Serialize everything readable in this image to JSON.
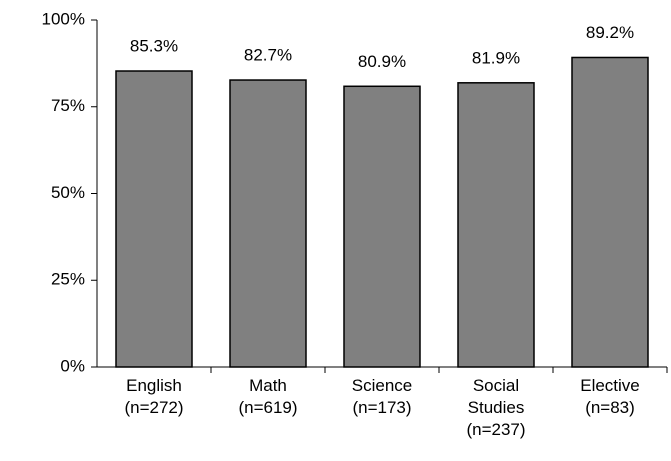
{
  "chart_data": {
    "type": "bar",
    "categories": [
      "English\n(n=272)",
      "Math\n(n=619)",
      "Science\n(n=173)",
      "Social\nStudies\n(n=237)",
      "Elective\n(n=83)"
    ],
    "values": [
      85.3,
      82.7,
      80.9,
      81.9,
      89.2
    ],
    "value_labels": [
      "85.3%",
      "82.7%",
      "80.9%",
      "81.9%",
      "89.2%"
    ],
    "color": "#808080",
    "ylim": [
      0,
      100
    ],
    "yticks": [
      {
        "value": 0,
        "label": "0%"
      },
      {
        "value": 25,
        "label": "25%"
      },
      {
        "value": 50,
        "label": "50%"
      },
      {
        "value": 75,
        "label": "75%"
      },
      {
        "value": 100,
        "label": "100%"
      }
    ],
    "grid": false
  }
}
